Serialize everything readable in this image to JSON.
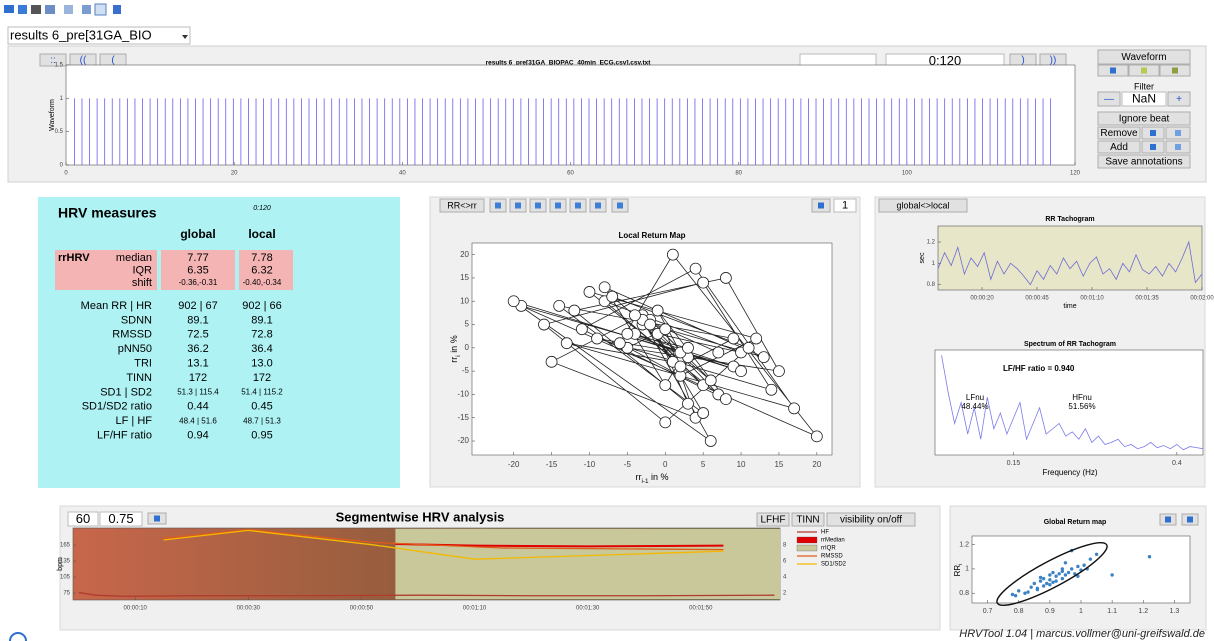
{
  "toolbar": {
    "file_dropdown": "results 6_pre[31GA_BIO"
  },
  "waveform_panel": {
    "nav_buttons": [
      "::",
      "((",
      "("
    ],
    "file_title": "results 6_pre[31GA_BIOPAC_40min_ECG.csv].csv.txt",
    "time_input": "0:120",
    "next_buttons": [
      ")",
      "))"
    ],
    "plot": {
      "ylabel": "Waveform",
      "xlim": [
        0,
        120
      ],
      "ylim": [
        0,
        1.5
      ],
      "xticks": [
        0,
        20,
        40,
        60,
        80,
        100,
        120
      ],
      "yticks": [
        0,
        0.5,
        1,
        1.5
      ],
      "color": "#6b5cf0",
      "beat_amplitude": 1,
      "beats": [
        1.0,
        1.9,
        2.8,
        3.7,
        4.6,
        5.5,
        6.4,
        7.3,
        8.2,
        9.1,
        10.0,
        10.9,
        11.8,
        12.7,
        13.6,
        14.5,
        15.4,
        16.3,
        17.2,
        18.1,
        19.0,
        19.9,
        20.8,
        21.7,
        22.6,
        23.5,
        24.4,
        25.3,
        26.2,
        27.1,
        28.0,
        28.9,
        29.8,
        30.7,
        31.6,
        32.5,
        33.4,
        34.3,
        35.2,
        36.1,
        37.0,
        37.9,
        38.8,
        39.7,
        40.6,
        41.5,
        42.4,
        43.3,
        44.2,
        45.1,
        46.0,
        46.9,
        47.8,
        48.7,
        49.6,
        50.5,
        51.4,
        52.3,
        53.2,
        54.1,
        55.0,
        55.9,
        56.8,
        57.7,
        58.6,
        59.5,
        60.4,
        61.3,
        62.2,
        63.1,
        64.0,
        64.9,
        65.8,
        66.7,
        67.6,
        68.5,
        69.4,
        70.3,
        71.2,
        72.1,
        73.0,
        73.9,
        74.8,
        75.7,
        76.6,
        77.5,
        78.4,
        79.3,
        80.2,
        81.1,
        82.0,
        82.9,
        83.8,
        84.7,
        85.6,
        86.5,
        87.4,
        88.3,
        89.2,
        90.1,
        91.0,
        91.9,
        92.8,
        93.7,
        94.6,
        95.5,
        96.4,
        97.3,
        98.2,
        99.1,
        100.0,
        100.9,
        101.8,
        102.7,
        103.6,
        104.5,
        105.4,
        106.3,
        107.2,
        108.1,
        109.0,
        109.9,
        110.8,
        111.7,
        112.6,
        113.5,
        114.4,
        115.3,
        116.2,
        117.1
      ]
    }
  },
  "control_panel": {
    "waveform": "Waveform",
    "filter": "Filter",
    "filter_minus": "—",
    "filter_value": "NaN",
    "filter_plus": "+",
    "ignore_beat": "Ignore beat",
    "remove": "Remove",
    "add": "Add",
    "save": "Save annotations"
  },
  "hrv_measures": {
    "title": "HRV measures",
    "local_range": "0:120",
    "col_global": "global",
    "col_local": "local",
    "rrhrv_label": "rrHRV",
    "rrhrv_rows": [
      {
        "label": "median",
        "global": "7.77",
        "local": "7.78"
      },
      {
        "label": "IQR",
        "global": "6.35",
        "local": "6.32"
      },
      {
        "label": "shift",
        "global": "-0.36,-0.31",
        "local": "-0.40,-0.34"
      }
    ],
    "rows": [
      {
        "label": "Mean RR | HR",
        "global": "902 | 67",
        "local": "902 | 66"
      },
      {
        "label": "SDNN",
        "global": "89.1",
        "local": "89.1"
      },
      {
        "label": "RMSSD",
        "global": "72.5",
        "local": "72.8"
      },
      {
        "label": "pNN50",
        "global": "36.2",
        "local": "36.4"
      },
      {
        "label": "TRI",
        "global": "13.1",
        "local": "13.0"
      },
      {
        "label": "TINN",
        "global": "172",
        "local": "172"
      },
      {
        "label": "SD1 | SD2",
        "global": "51.3 | 115.4",
        "local": "51.4 | 115.2"
      },
      {
        "label": "SD1/SD2 ratio",
        "global": "0.44",
        "local": "0.45"
      },
      {
        "label": "LF | HF",
        "global": "48.4 | 51.6",
        "local": "48.7 | 51.3"
      },
      {
        "label": "LF/HF ratio",
        "global": "0.94",
        "local": "0.95"
      }
    ]
  },
  "return_map": {
    "toggle": "RR<>rr",
    "segment": "1",
    "title": "Local Return Map",
    "ylabel": {
      "main": "rr",
      "sub": "i",
      "rest": " in %"
    },
    "xlabel": {
      "main": "rr",
      "sub": "i-1",
      "rest": " in %"
    },
    "xlim": [
      -25.5,
      22
    ],
    "ylim": [
      -23,
      22.5
    ],
    "xticks": [
      -20,
      -15,
      -10,
      -5,
      0,
      5,
      10,
      15,
      20
    ],
    "yticks": [
      -20,
      -15,
      -10,
      -5,
      0,
      5,
      10,
      15,
      20
    ],
    "rr": [
      2,
      -3,
      5,
      -8,
      10,
      -1,
      3,
      -12,
      8,
      15,
      -5,
      0,
      4,
      -15,
      -3,
      7,
      -10,
      12,
      2,
      -6,
      1,
      20,
      -19,
      9,
      -4,
      3,
      -2,
      6,
      -7,
      11,
      0,
      -16,
      5,
      14,
      -9,
      2,
      -1,
      8,
      -11,
      4,
      17,
      -13,
      1,
      -3,
      6,
      -20,
      10,
      -5,
      3,
      0,
      -8,
      13,
      -2,
      5,
      -14,
      9,
      2,
      -4,
      7,
      -1
    ]
  },
  "right_panel": {
    "toggle": "global<>local",
    "tachogram": {
      "title": "RR Tachogram",
      "ylabel": "sec",
      "xlabel": "time",
      "color": "#6b6bd6",
      "xlim": [
        0,
        120
      ],
      "ylim": [
        0.75,
        1.35
      ],
      "xticks": [
        {
          "value": 20,
          "label": "00:00:20"
        },
        {
          "value": 45,
          "label": "00:00:45"
        },
        {
          "value": 70,
          "label": "00:01:10"
        },
        {
          "value": 95,
          "label": "00:01:35"
        },
        {
          "value": 120,
          "label": "00:02:00"
        }
      ],
      "yticks": [
        0.8,
        1,
        1.2
      ],
      "x": [
        0,
        3,
        6,
        9,
        12,
        15,
        18,
        21,
        24,
        27,
        30,
        33,
        36,
        39,
        42,
        45,
        48,
        51,
        54,
        57,
        60,
        63,
        66,
        69,
        72,
        75,
        78,
        81,
        84,
        87,
        90,
        93,
        96,
        99,
        102,
        105,
        108,
        111,
        114,
        117,
        120
      ],
      "values": [
        0.95,
        1.1,
        0.98,
        1.15,
        0.9,
        1.05,
        0.97,
        1.1,
        0.85,
        1.02,
        0.9,
        1.0,
        0.95,
        0.88,
        0.8,
        0.93,
        0.85,
        0.98,
        0.9,
        1.05,
        0.95,
        1.02,
        0.88,
        1.0,
        1.06,
        0.9,
        0.95,
        0.85,
        1.0,
        0.92,
        1.08,
        0.94,
        0.9,
        0.97,
        0.88,
        1.0,
        0.92,
        1.05,
        1.2,
        0.82,
        0.9
      ]
    },
    "spectrum": {
      "title": "Spectrum of RR Tachogram",
      "ratio": "LF/HF ratio = 0.940",
      "lf_label": "LFnu",
      "lf_value": "48.44%",
      "hf_label": "HFnu",
      "hf_value": "51.56%",
      "xlabel": "Frequency (Hz)",
      "color": "#7b7bea",
      "xlim": [
        0.03,
        0.44
      ],
      "ylim": [
        0,
        1
      ],
      "xticks": [
        0.15,
        0.4
      ],
      "x": [
        0.04,
        0.05,
        0.06,
        0.07,
        0.08,
        0.09,
        0.1,
        0.11,
        0.12,
        0.13,
        0.14,
        0.15,
        0.16,
        0.17,
        0.18,
        0.19,
        0.2,
        0.21,
        0.22,
        0.23,
        0.24,
        0.25,
        0.26,
        0.27,
        0.28,
        0.29,
        0.3,
        0.31,
        0.32,
        0.33,
        0.34,
        0.35,
        0.36,
        0.37,
        0.38,
        0.39,
        0.4,
        0.41,
        0.42,
        0.43,
        0.44
      ],
      "values": [
        0.95,
        0.6,
        0.3,
        0.5,
        0.2,
        0.45,
        0.15,
        0.55,
        0.25,
        0.4,
        0.2,
        0.35,
        0.5,
        0.15,
        0.3,
        0.45,
        0.2,
        0.25,
        0.3,
        0.18,
        0.22,
        0.15,
        0.25,
        0.12,
        0.18,
        0.1,
        0.12,
        0.15,
        0.08,
        0.1,
        0.06,
        0.08,
        0.12,
        0.07,
        0.09,
        0.06,
        0.1,
        0.05,
        0.08,
        0.07,
        0.06
      ]
    }
  },
  "segment_panel": {
    "window": "60",
    "overlap": "0.75",
    "title": "Segmentwise HRV analysis",
    "buttons": [
      "LFHF",
      "TINN",
      "visibility on/off"
    ],
    "ylabel": "bpm",
    "xlim": [
      -1,
      124
    ],
    "ylim": [
      62,
      197
    ],
    "y2lim": [
      1.1,
      10.1
    ],
    "xticks": [
      {
        "value": 10,
        "label": "00:00:10"
      },
      {
        "value": 30,
        "label": "00:00:30"
      },
      {
        "value": 50,
        "label": "00:00:50"
      },
      {
        "value": 70,
        "label": "00:01:10"
      },
      {
        "value": 90,
        "label": "00:01:30"
      },
      {
        "value": 110,
        "label": "00:01:50"
      }
    ],
    "yticks": [
      75,
      105,
      135,
      165
    ],
    "y2ticks": [
      2,
      4,
      6,
      8
    ],
    "series": [
      {
        "name": "HF",
        "color": "#b03a2e",
        "axis": "y",
        "x": [
          0,
          3,
          8,
          20,
          40,
          60,
          80,
          100,
          123
        ],
        "values": [
          76,
          71,
          69,
          70,
          70,
          71,
          70,
          70,
          71
        ]
      },
      {
        "name": "rrMedian",
        "color": "#e00000",
        "axis": "y2",
        "x": [
          56,
          70,
          90,
          114
        ],
        "values": [
          8.1,
          7.9,
          7.8,
          7.9
        ]
      },
      {
        "name": "rrIQR",
        "color": "#c8c89a",
        "axis": "y2",
        "x": [
          56,
          124
        ],
        "low": [
          1.2,
          1.2
        ],
        "high": [
          10,
          10
        ]
      },
      {
        "name": "RMSSD",
        "color": "#e05a1a",
        "axis": "y2",
        "x": [
          15,
          30,
          52,
          75,
          114
        ],
        "values": [
          8.8,
          9.9,
          8.3,
          7.6,
          7.4
        ]
      },
      {
        "name": "SD1/SD2",
        "color": "#f5b800",
        "axis": "y2",
        "x": [
          15,
          30,
          52,
          70,
          114
        ],
        "values": [
          8.6,
          9.8,
          8.0,
          6.2,
          7.2
        ]
      }
    ]
  },
  "global_map": {
    "title": "Global Return map",
    "ylabel": {
      "main": "RR",
      "sub": "i"
    },
    "color": "#3b82c4",
    "xlim": [
      0.65,
      1.35
    ],
    "ylim": [
      0.72,
      1.27
    ],
    "xticks": [
      0.7,
      0.8,
      0.9,
      1,
      1.1,
      1.2,
      1.3
    ],
    "yticks": [
      0.8,
      1,
      1.2
    ],
    "x": [
      0.78,
      0.8,
      0.82,
      0.84,
      0.85,
      0.86,
      0.87,
      0.88,
      0.88,
      0.89,
      0.9,
      0.9,
      0.91,
      0.92,
      0.92,
      0.93,
      0.94,
      0.94,
      0.95,
      0.96,
      0.97,
      0.98,
      0.99,
      1.0,
      1.01,
      1.02,
      0.83,
      0.87,
      0.91,
      0.95,
      0.99,
      1.03,
      0.86,
      0.9,
      0.94,
      0.79,
      1.05,
      1.1,
      1.22,
      0.97
    ],
    "y": [
      0.79,
      0.82,
      0.8,
      0.85,
      0.88,
      0.84,
      0.9,
      0.86,
      0.92,
      0.88,
      0.91,
      0.95,
      0.89,
      0.94,
      0.9,
      0.96,
      0.92,
      0.98,
      0.95,
      0.97,
      1.0,
      0.96,
      1.02,
      0.99,
      1.03,
      1.0,
      0.81,
      0.93,
      0.97,
      1.05,
      0.94,
      1.08,
      0.83,
      0.87,
      1.0,
      0.78,
      1.12,
      0.95,
      1.1,
      1.15
    ]
  },
  "footer": "HRVTool 1.04 | marcus.vollmer@uni-greifswald.de"
}
